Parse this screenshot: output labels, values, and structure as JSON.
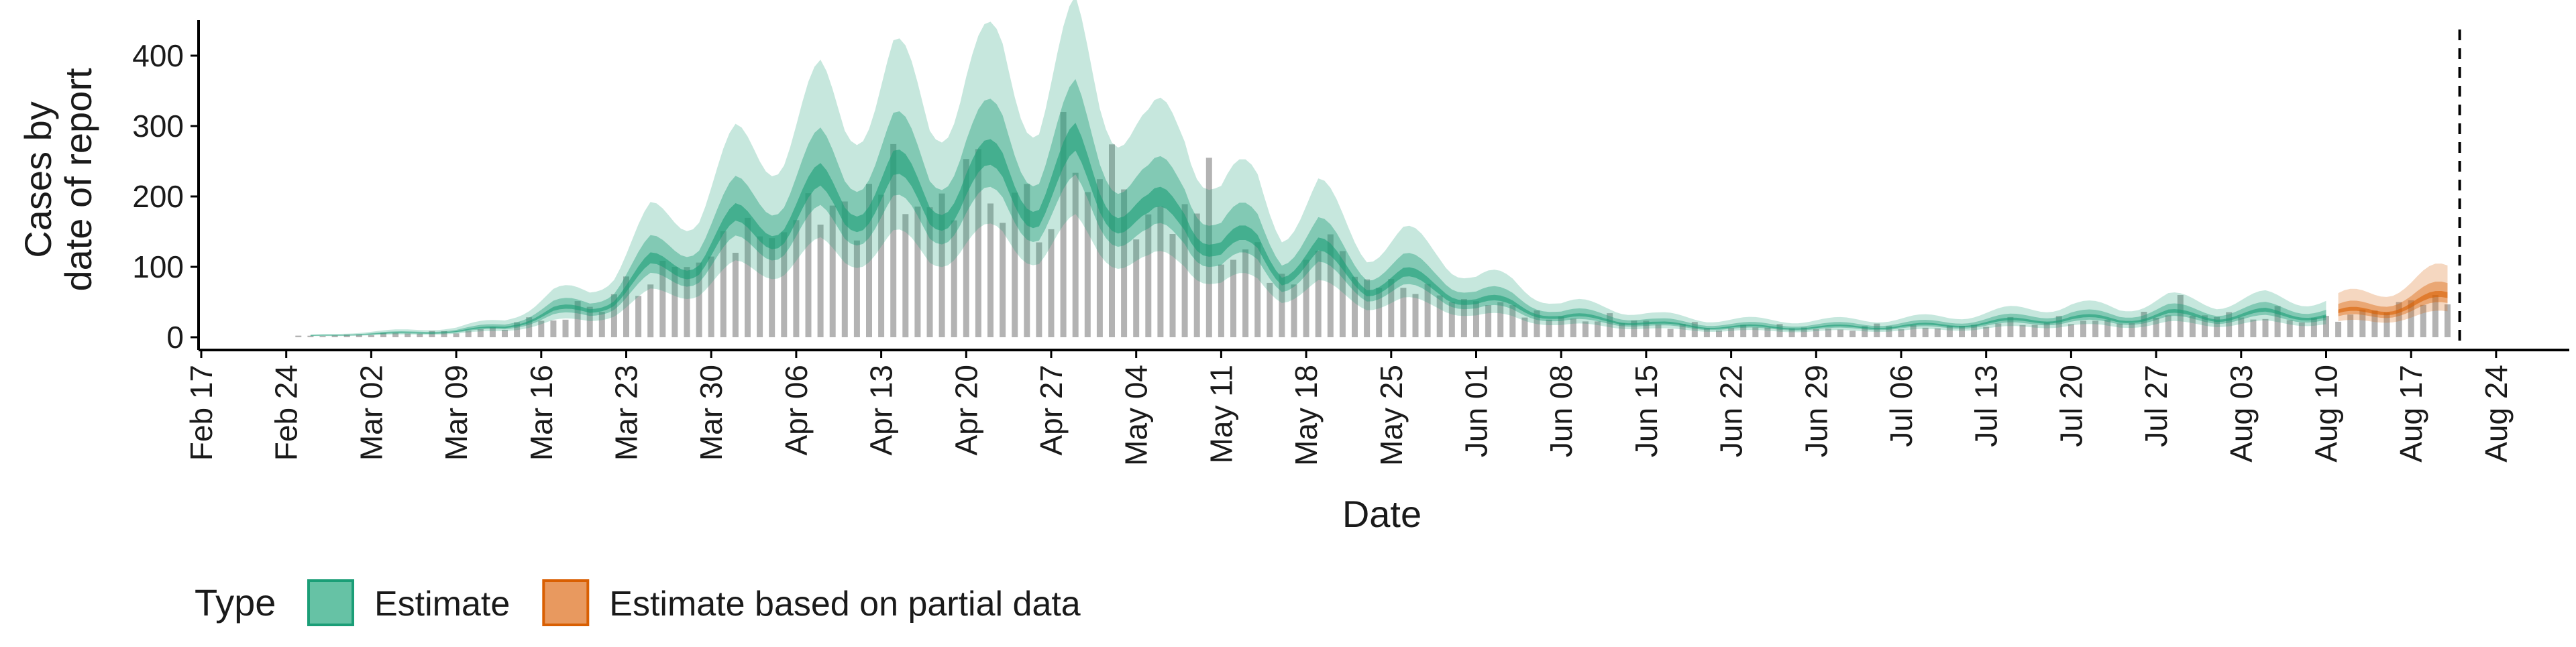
{
  "chart_data": {
    "type": "bar+area",
    "title": "",
    "xlabel": "Date",
    "ylabel": [
      "Cases by",
      "date of report"
    ],
    "ylim": [
      0,
      450
    ],
    "yticks": [
      0,
      100,
      200,
      300,
      400
    ],
    "xlim": [
      "2020-02-16",
      "2020-08-29"
    ],
    "xticks": [
      "2020-02-17",
      "2020-02-24",
      "2020-03-02",
      "2020-03-09",
      "2020-03-16",
      "2020-03-23",
      "2020-03-30",
      "2020-04-06",
      "2020-04-13",
      "2020-04-20",
      "2020-04-27",
      "2020-05-04",
      "2020-05-11",
      "2020-05-18",
      "2020-05-25",
      "2020-06-01",
      "2020-06-08",
      "2020-06-15",
      "2020-06-22",
      "2020-06-29",
      "2020-07-06",
      "2020-07-13",
      "2020-07-20",
      "2020-07-27",
      "2020-08-03",
      "2020-08-10",
      "2020-08-17",
      "2020-08-24"
    ],
    "xtick_labels": [
      "Feb 17",
      "Feb 24",
      "Mar 02",
      "Mar 09",
      "Mar 16",
      "Mar 23",
      "Mar 30",
      "Apr 06",
      "Apr 13",
      "Apr 20",
      "Apr 27",
      "May 04",
      "May 11",
      "May 18",
      "May 25",
      "Jun 01",
      "Jun 08",
      "Jun 15",
      "Jun 22",
      "Jun 29",
      "Jul 06",
      "Jul 13",
      "Jul 20",
      "Jul 27",
      "Aug 03",
      "Aug 10",
      "Aug 17",
      "Aug 24"
    ],
    "vline_date": "2020-08-21",
    "grid": false,
    "legend": {
      "position": "bottom-left",
      "title": "Type",
      "entries": [
        {
          "label": "Estimate",
          "fill": "#66c2a5",
          "stroke": "#1b9e77"
        },
        {
          "label": "Estimate based on partial data",
          "fill": "#e8995f",
          "stroke": "#d95f02"
        }
      ]
    },
    "colors": {
      "bars": "#a6a6a6",
      "estimate_dark": "#1b9e77",
      "partial_dark": "#d95f02",
      "axis": "#000000"
    },
    "estimate_start": "2020-02-26",
    "partial_start": "2020-08-11",
    "series_end": "2020-08-20",
    "median_keypoints": [
      [
        "2020-02-26",
        2
      ],
      [
        "2020-03-01",
        4
      ],
      [
        "2020-03-05",
        6
      ],
      [
        "2020-03-09",
        8
      ],
      [
        "2020-03-13",
        15
      ],
      [
        "2020-03-17",
        35
      ],
      [
        "2020-03-20",
        40
      ],
      [
        "2020-03-22",
        55
      ],
      [
        "2020-03-25",
        95
      ],
      [
        "2020-03-29",
        110
      ],
      [
        "2020-04-01",
        150
      ],
      [
        "2020-04-05",
        165
      ],
      [
        "2020-04-08",
        195
      ],
      [
        "2020-04-10",
        185
      ],
      [
        "2020-04-14",
        215
      ],
      [
        "2020-04-17",
        185
      ],
      [
        "2020-04-20",
        215
      ],
      [
        "2020-04-23",
        225
      ],
      [
        "2020-04-26",
        195
      ],
      [
        "2020-04-29",
        240
      ],
      [
        "2020-05-01",
        205
      ],
      [
        "2020-05-05",
        165
      ],
      [
        "2020-05-08",
        175
      ],
      [
        "2020-05-11",
        125
      ],
      [
        "2020-05-14",
        125
      ],
      [
        "2020-05-16",
        95
      ],
      [
        "2020-05-19",
        115
      ],
      [
        "2020-05-23",
        75
      ],
      [
        "2020-05-26",
        80
      ],
      [
        "2020-05-29",
        70
      ],
      [
        "2020-06-01",
        50
      ],
      [
        "2020-06-04",
        45
      ],
      [
        "2020-06-08",
        28
      ],
      [
        "2020-06-12",
        25
      ],
      [
        "2020-06-16",
        18
      ],
      [
        "2020-06-20",
        15
      ],
      [
        "2020-06-25",
        14
      ],
      [
        "2020-06-30",
        14
      ],
      [
        "2020-07-05",
        15
      ],
      [
        "2020-07-10",
        17
      ],
      [
        "2020-07-15",
        22
      ],
      [
        "2020-07-20",
        27
      ],
      [
        "2020-07-24",
        24
      ],
      [
        "2020-07-28",
        32
      ],
      [
        "2020-08-01",
        28
      ],
      [
        "2020-08-05",
        33
      ],
      [
        "2020-08-10",
        30
      ],
      [
        "2020-08-14",
        38
      ],
      [
        "2020-08-17",
        45
      ],
      [
        "2020-08-20",
        55
      ]
    ],
    "wave": {
      "period_days": 7,
      "amplitude": 0.18
    },
    "band_multipliers": {
      "lower90": 0.62,
      "lower50": 0.82,
      "lower20": 0.94,
      "upper20": 1.08,
      "upper50": 1.3,
      "upper90": 1.72
    },
    "bars": {
      "start": "2020-02-25",
      "end": "2020-08-20",
      "noise": 0.15,
      "values_by_date": {
        "2020-03-18": 25,
        "2020-03-25": 75,
        "2020-04-01": 120,
        "2020-04-08": 160,
        "2020-04-15": 175,
        "2020-04-22": 190,
        "2020-04-28": 320,
        "2020-05-03": 210,
        "2020-05-10": 255,
        "2020-05-17": 75,
        "2020-05-24": 70,
        "2020-05-30": 50,
        "2020-06-05": 28,
        "2020-07-29": 60,
        "2020-08-19": 60
      }
    }
  }
}
